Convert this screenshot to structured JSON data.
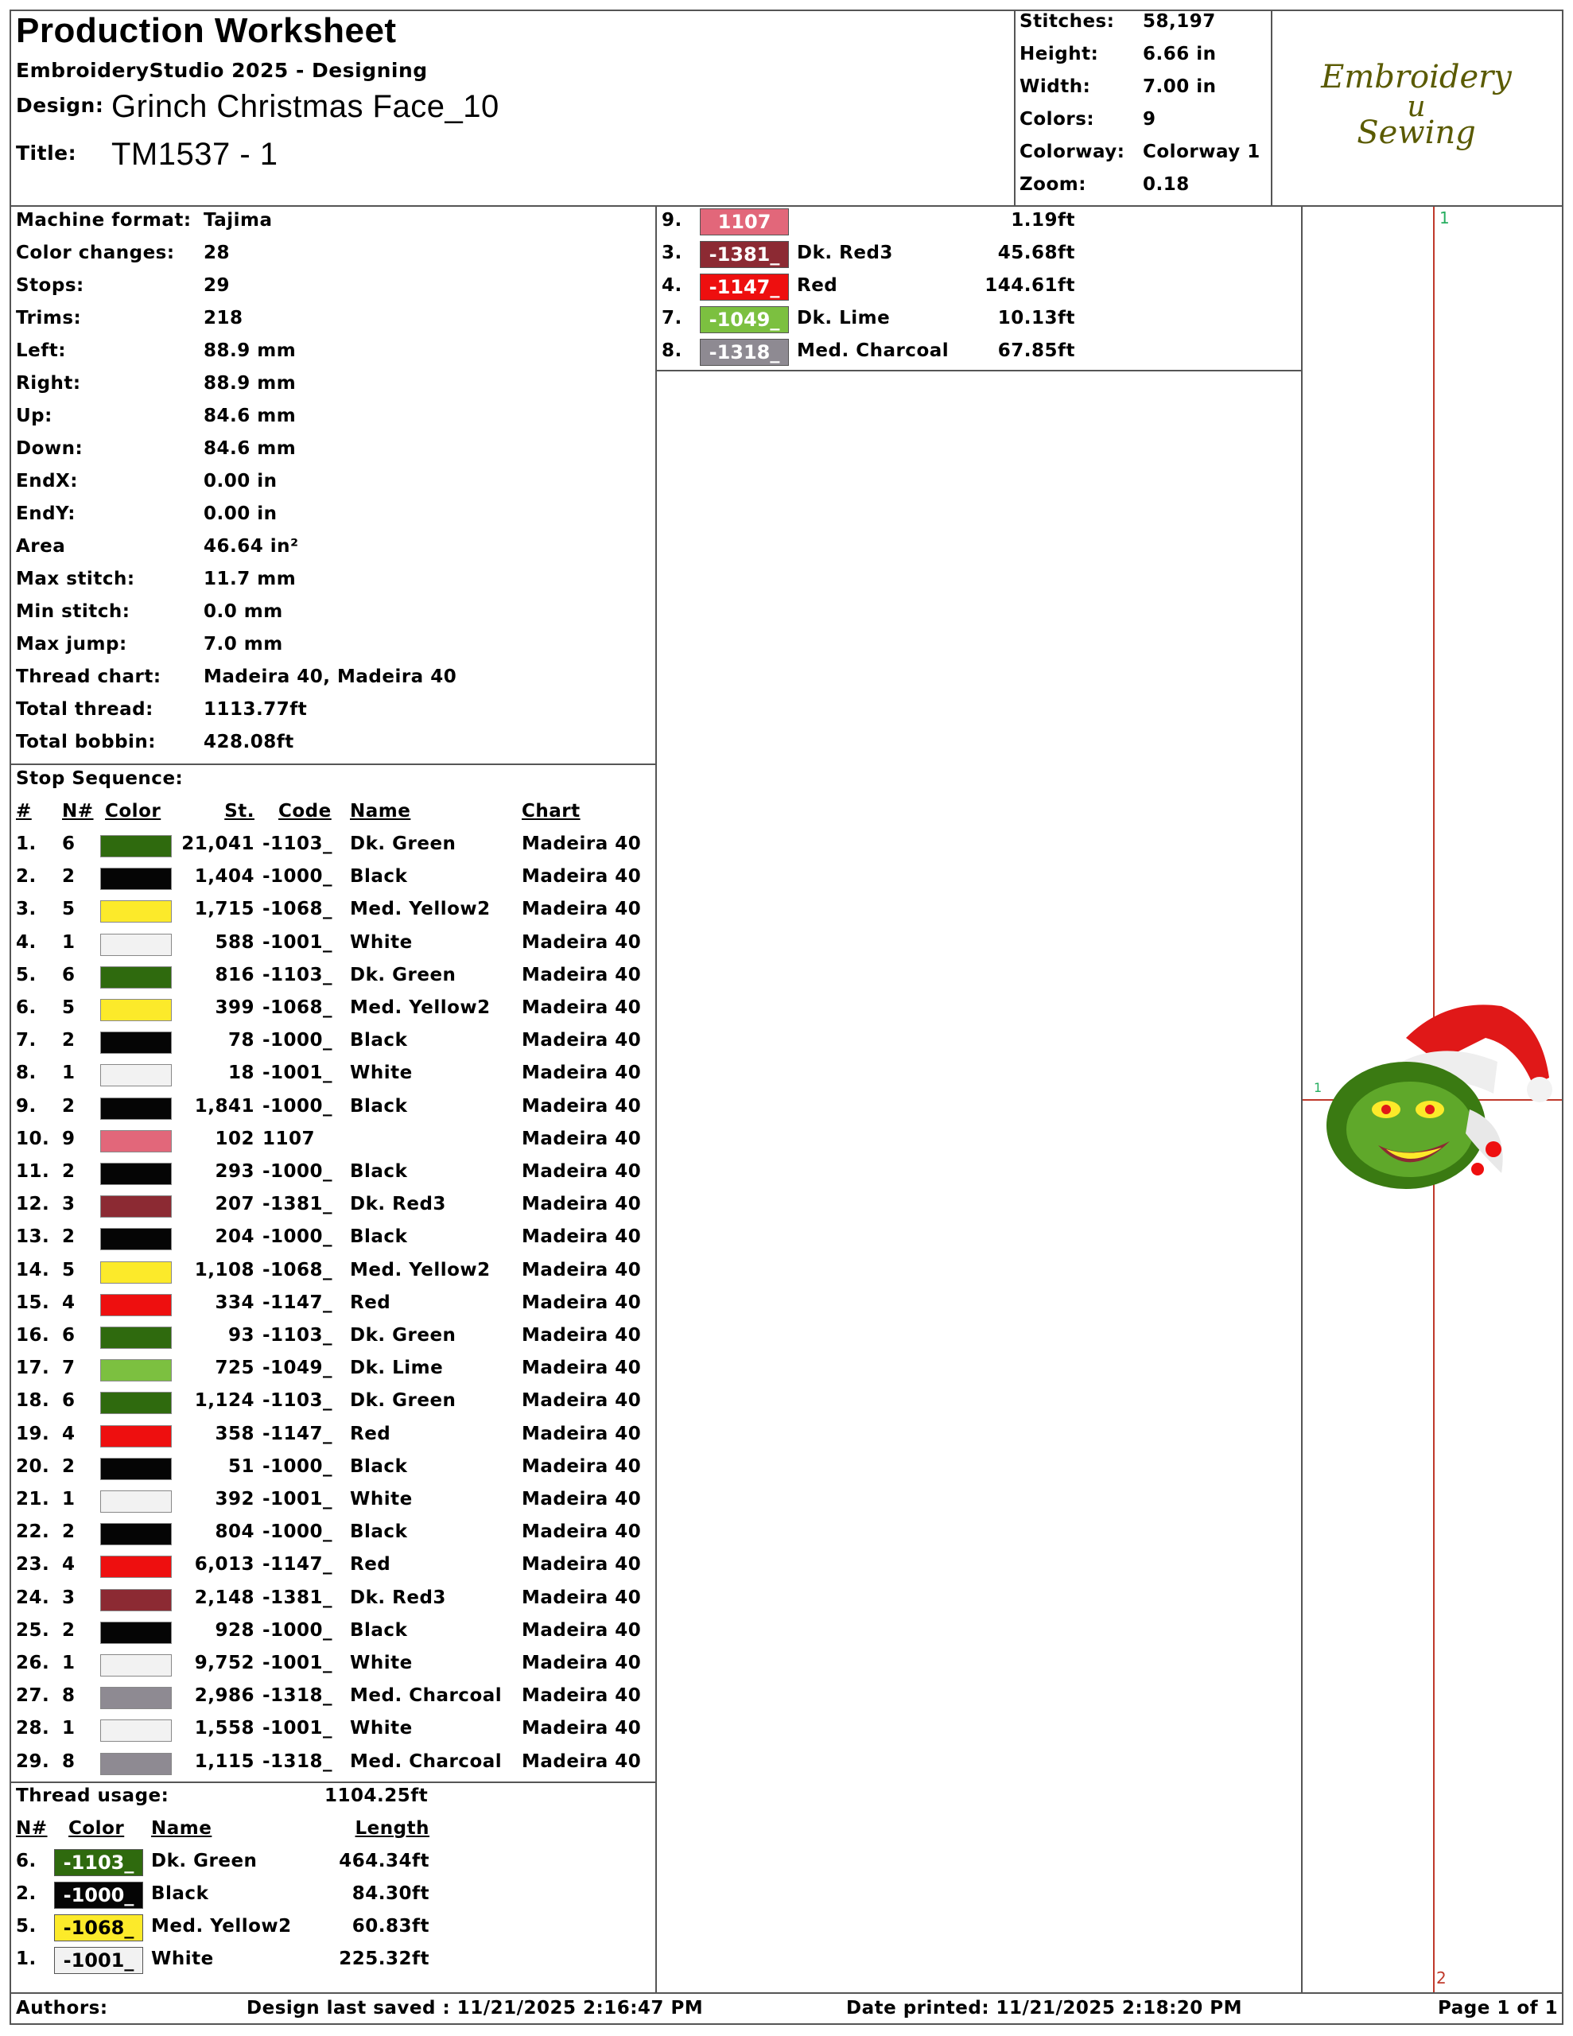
{
  "header": {
    "title": "Production Worksheet",
    "app": "EmbroideryStudio 2025 - Designing",
    "design_label": "Design:",
    "design_value": "Grinch Christmas Face_10",
    "title_label": "Title:",
    "title_value": "TM1537 - 1",
    "logo_line1": "Embroidery",
    "logo_line2": "u",
    "logo_line3": "Sewing"
  },
  "summary": [
    {
      "label": "Stitches:",
      "value": "58,197"
    },
    {
      "label": "Height:",
      "value": "6.66 in"
    },
    {
      "label": "Width:",
      "value": "7.00 in"
    },
    {
      "label": "Colors:",
      "value": "9"
    },
    {
      "label": "Colorway:",
      "value": "Colorway 1"
    },
    {
      "label": "Zoom:",
      "value": "0.18"
    }
  ],
  "machine": [
    {
      "label": "Machine format:",
      "value": "Tajima"
    },
    {
      "label": "Color changes:",
      "value": "28"
    },
    {
      "label": "Stops:",
      "value": "29"
    },
    {
      "label": "Trims:",
      "value": "218"
    },
    {
      "label": "Left:",
      "value": "88.9 mm"
    },
    {
      "label": "Right:",
      "value": "88.9 mm"
    },
    {
      "label": "Up:",
      "value": "84.6 mm"
    },
    {
      "label": "Down:",
      "value": "84.6 mm"
    },
    {
      "label": "EndX:",
      "value": "0.00 in"
    },
    {
      "label": "EndY:",
      "value": "0.00 in"
    },
    {
      "label": "Area",
      "value": "46.64 in²"
    },
    {
      "label": "Max stitch:",
      "value": "11.7 mm"
    },
    {
      "label": "Min stitch:",
      "value": "0.0 mm"
    },
    {
      "label": "Max jump:",
      "value": "7.0 mm"
    },
    {
      "label": "Thread chart:",
      "value": "Madeira 40, Madeira  40"
    },
    {
      "label": "Total thread:",
      "value": "1113.77ft"
    },
    {
      "label": "Total bobbin:",
      "value": "428.08ft"
    }
  ],
  "stop_sequence": {
    "heading": "Stop Sequence:",
    "columns": [
      "#",
      "N#",
      "Color",
      "St.",
      "Code",
      "Name",
      "Chart"
    ],
    "rows": [
      {
        "num": "1.",
        "n": "6",
        "color": "#2f6a0e",
        "st": "21,041",
        "code": "-1103_",
        "name": "Dk. Green",
        "chart": "Madeira 40"
      },
      {
        "num": "2.",
        "n": "2",
        "color": "#050505",
        "st": "1,404",
        "code": "-1000_",
        "name": "Black",
        "chart": "Madeira 40"
      },
      {
        "num": "3.",
        "n": "5",
        "color": "#fcea2a",
        "st": "1,715",
        "code": "-1068_",
        "name": "Med. Yellow2",
        "chart": "Madeira 40"
      },
      {
        "num": "4.",
        "n": "1",
        "color": "#f2f2f2",
        "st": "588",
        "code": "-1001_",
        "name": "White",
        "chart": "Madeira 40"
      },
      {
        "num": "5.",
        "n": "6",
        "color": "#2f6a0e",
        "st": "816",
        "code": "-1103_",
        "name": "Dk. Green",
        "chart": "Madeira 40"
      },
      {
        "num": "6.",
        "n": "5",
        "color": "#fcea2a",
        "st": "399",
        "code": "-1068_",
        "name": "Med. Yellow2",
        "chart": "Madeira 40"
      },
      {
        "num": "7.",
        "n": "2",
        "color": "#050505",
        "st": "78",
        "code": "-1000_",
        "name": "Black",
        "chart": "Madeira 40"
      },
      {
        "num": "8.",
        "n": "1",
        "color": "#f2f2f2",
        "st": "18",
        "code": "-1001_",
        "name": "White",
        "chart": "Madeira 40"
      },
      {
        "num": "9.",
        "n": "2",
        "color": "#050505",
        "st": "1,841",
        "code": "-1000_",
        "name": "Black",
        "chart": "Madeira 40"
      },
      {
        "num": "10.",
        "n": "9",
        "color": "#e2677a",
        "st": "102",
        "code": "1107",
        "name": "",
        "chart": "Madeira  40"
      },
      {
        "num": "11.",
        "n": "2",
        "color": "#050505",
        "st": "293",
        "code": "-1000_",
        "name": "Black",
        "chart": "Madeira 40"
      },
      {
        "num": "12.",
        "n": "3",
        "color": "#8c2a33",
        "st": "207",
        "code": "-1381_",
        "name": "Dk. Red3",
        "chart": "Madeira 40"
      },
      {
        "num": "13.",
        "n": "2",
        "color": "#050505",
        "st": "204",
        "code": "-1000_",
        "name": "Black",
        "chart": "Madeira 40"
      },
      {
        "num": "14.",
        "n": "5",
        "color": "#fcea2a",
        "st": "1,108",
        "code": "-1068_",
        "name": "Med. Yellow2",
        "chart": "Madeira 40"
      },
      {
        "num": "15.",
        "n": "4",
        "color": "#ee0f0f",
        "st": "334",
        "code": "-1147_",
        "name": "Red",
        "chart": "Madeira 40"
      },
      {
        "num": "16.",
        "n": "6",
        "color": "#2f6a0e",
        "st": "93",
        "code": "-1103_",
        "name": "Dk. Green",
        "chart": "Madeira 40"
      },
      {
        "num": "17.",
        "n": "7",
        "color": "#7cc040",
        "st": "725",
        "code": "-1049_",
        "name": "Dk. Lime",
        "chart": "Madeira 40"
      },
      {
        "num": "18.",
        "n": "6",
        "color": "#2f6a0e",
        "st": "1,124",
        "code": "-1103_",
        "name": "Dk. Green",
        "chart": "Madeira 40"
      },
      {
        "num": "19.",
        "n": "4",
        "color": "#ee0f0f",
        "st": "358",
        "code": "-1147_",
        "name": "Red",
        "chart": "Madeira 40"
      },
      {
        "num": "20.",
        "n": "2",
        "color": "#050505",
        "st": "51",
        "code": "-1000_",
        "name": "Black",
        "chart": "Madeira 40"
      },
      {
        "num": "21.",
        "n": "1",
        "color": "#f2f2f2",
        "st": "392",
        "code": "-1001_",
        "name": "White",
        "chart": "Madeira 40"
      },
      {
        "num": "22.",
        "n": "2",
        "color": "#050505",
        "st": "804",
        "code": "-1000_",
        "name": "Black",
        "chart": "Madeira 40"
      },
      {
        "num": "23.",
        "n": "4",
        "color": "#ee0f0f",
        "st": "6,013",
        "code": "-1147_",
        "name": "Red",
        "chart": "Madeira 40"
      },
      {
        "num": "24.",
        "n": "3",
        "color": "#8c2a33",
        "st": "2,148",
        "code": "-1381_",
        "name": "Dk. Red3",
        "chart": "Madeira 40"
      },
      {
        "num": "25.",
        "n": "2",
        "color": "#050505",
        "st": "928",
        "code": "-1000_",
        "name": "Black",
        "chart": "Madeira 40"
      },
      {
        "num": "26.",
        "n": "1",
        "color": "#f2f2f2",
        "st": "9,752",
        "code": "-1001_",
        "name": "White",
        "chart": "Madeira 40"
      },
      {
        "num": "27.",
        "n": "8",
        "color": "#8e8a92",
        "st": "2,986",
        "code": "-1318_",
        "name": "Med. Charcoal",
        "chart": "Madeira 40"
      },
      {
        "num": "28.",
        "n": "1",
        "color": "#f2f2f2",
        "st": "1,558",
        "code": "-1001_",
        "name": "White",
        "chart": "Madeira 40"
      },
      {
        "num": "29.",
        "n": "8",
        "color": "#8e8a92",
        "st": "1,115",
        "code": "-1318_",
        "name": "Med. Charcoal",
        "chart": "Madeira 40"
      }
    ]
  },
  "thread_usage": {
    "heading": "Thread usage:",
    "total": "1104.25ft",
    "columns": [
      "N#",
      "Color",
      "Name",
      "Length"
    ],
    "rows": [
      {
        "n": "6.",
        "code": "-1103_",
        "color": "#2f6a0e",
        "text_color": "#ffffff",
        "name": "Dk. Green",
        "length": "464.34ft"
      },
      {
        "n": "2.",
        "code": "-1000_",
        "color": "#050505",
        "text_color": "#ffffff",
        "name": "Black",
        "length": "84.30ft"
      },
      {
        "n": "5.",
        "code": "-1068_",
        "color": "#fcea2a",
        "text_color": "#000000",
        "name": "Med. Yellow2",
        "length": "60.83ft"
      },
      {
        "n": "1.",
        "code": "-1001_",
        "color": "#f2f2f2",
        "text_color": "#000000",
        "name": "White",
        "length": "225.32ft"
      },
      {
        "n": "9.",
        "code": "1107",
        "color": "#e2677a",
        "text_color": "#ffffff",
        "name": "",
        "length": "1.19ft"
      },
      {
        "n": "3.",
        "code": "-1381_",
        "color": "#8c2a33",
        "text_color": "#ffffff",
        "name": "Dk. Red3",
        "length": "45.68ft"
      },
      {
        "n": "4.",
        "code": "-1147_",
        "color": "#ee0f0f",
        "text_color": "#ffffff",
        "name": "Red",
        "length": "144.61ft"
      },
      {
        "n": "7.",
        "code": "-1049_",
        "color": "#7cc040",
        "text_color": "#ffffff",
        "name": "Dk. Lime",
        "length": "10.13ft"
      },
      {
        "n": "8.",
        "code": "-1318_",
        "color": "#8e8a92",
        "text_color": "#ffffff",
        "name": "Med. Charcoal",
        "length": "67.85ft"
      }
    ]
  },
  "preview": {
    "marker_top": "1",
    "marker_left": "1",
    "marker_bottom": "2"
  },
  "footer": {
    "authors": "Authors:",
    "saved": "Design last saved : 11/21/2025 2:16:47 PM",
    "printed": "Date printed: 11/21/2025 2:18:20 PM",
    "page": "Page 1 of 1"
  }
}
